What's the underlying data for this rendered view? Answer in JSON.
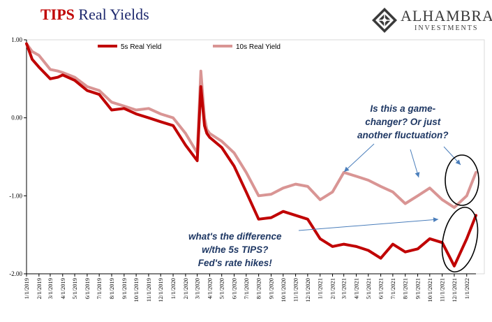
{
  "title_part1": "TIPS",
  "title_part2": "Real Yields",
  "logo": {
    "name": "ALHAMBRA",
    "sub": "INVESTMENTS",
    "icon": "diamond-lattice-icon"
  },
  "annotations": {
    "top": [
      "Is this a game-",
      "changer? Or just",
      "another fluctuation?"
    ],
    "bottom": [
      "what's the difference",
      "w/the 5s TIPS?",
      "Fed's rate hikes!"
    ]
  },
  "colors": {
    "title_red": "#c00000",
    "title_navy": "#1f2a6e",
    "series_5s": "#c00000",
    "series_10s": "#d99594",
    "annotation": "#1f3864"
  },
  "chart_data": {
    "type": "line",
    "title": "TIPS Real Yields",
    "xlabel": "",
    "ylabel": "",
    "ylim": [
      -2.0,
      1.0
    ],
    "yticks": [
      "1.00",
      "0.00",
      "-1.00",
      "-2.00"
    ],
    "grid": false,
    "legend_position": "top",
    "x_tick_labels": [
      "1/1/2019",
      "2/1/2019",
      "3/1/2019",
      "4/1/2019",
      "5/1/2019",
      "6/1/2019",
      "7/1/2019",
      "8/1/2019",
      "9/1/2019",
      "10/1/2019",
      "11/1/2019",
      "12/1/2019",
      "1/1/2020",
      "2/1/2020",
      "3/1/2020",
      "4/1/2020",
      "5/1/2020",
      "6/1/2020",
      "7/1/2020",
      "8/1/2020",
      "9/1/2020",
      "10/1/2020",
      "11/1/2020",
      "12/1/2020",
      "1/1/2021",
      "2/1/2021",
      "3/1/2021",
      "4/1/2021",
      "5/1/2021",
      "6/1/2021",
      "7/1/2021",
      "8/1/2021",
      "9/1/2021",
      "10/1/2021",
      "11/1/2021",
      "12/1/2021",
      "1/1/2022"
    ],
    "x_dates": [
      "2019-01-01",
      "2019-01-15",
      "2019-02-01",
      "2019-03-01",
      "2019-03-20",
      "2019-04-01",
      "2019-05-01",
      "2019-06-01",
      "2019-07-01",
      "2019-08-01",
      "2019-09-01",
      "2019-10-01",
      "2019-11-01",
      "2019-12-01",
      "2020-01-01",
      "2020-02-01",
      "2020-03-01",
      "2020-03-10",
      "2020-03-19",
      "2020-03-25",
      "2020-04-01",
      "2020-05-01",
      "2020-06-01",
      "2020-07-01",
      "2020-08-01",
      "2020-09-01",
      "2020-10-01",
      "2020-11-01",
      "2020-12-01",
      "2021-01-01",
      "2021-02-01",
      "2021-03-01",
      "2021-04-01",
      "2021-05-01",
      "2021-06-01",
      "2021-07-01",
      "2021-08-01",
      "2021-09-01",
      "2021-10-01",
      "2021-11-01",
      "2021-12-01",
      "2022-01-01",
      "2022-01-24"
    ],
    "series": [
      {
        "name": "5s Real Yield",
        "values": [
          0.95,
          0.75,
          0.65,
          0.5,
          0.52,
          0.55,
          0.48,
          0.35,
          0.3,
          0.1,
          0.12,
          0.05,
          0.0,
          -0.05,
          -0.1,
          -0.35,
          -0.55,
          0.4,
          -0.1,
          -0.2,
          -0.25,
          -0.38,
          -0.62,
          -0.95,
          -1.3,
          -1.28,
          -1.2,
          -1.25,
          -1.3,
          -1.55,
          -1.65,
          -1.62,
          -1.65,
          -1.7,
          -1.8,
          -1.62,
          -1.72,
          -1.68,
          -1.55,
          -1.6,
          -1.9,
          -1.55,
          -1.25
        ]
      },
      {
        "name": "10s Real Yield",
        "values": [
          0.95,
          0.85,
          0.8,
          0.62,
          0.6,
          0.58,
          0.52,
          0.4,
          0.35,
          0.2,
          0.15,
          0.1,
          0.12,
          0.05,
          0.0,
          -0.2,
          -0.45,
          0.6,
          0.0,
          -0.15,
          -0.2,
          -0.3,
          -0.45,
          -0.7,
          -1.0,
          -0.98,
          -0.9,
          -0.85,
          -0.88,
          -1.05,
          -0.95,
          -0.7,
          -0.75,
          -0.8,
          -0.88,
          -0.95,
          -1.1,
          -1.0,
          -0.9,
          -1.05,
          -1.15,
          -1.0,
          -0.7
        ]
      }
    ]
  }
}
